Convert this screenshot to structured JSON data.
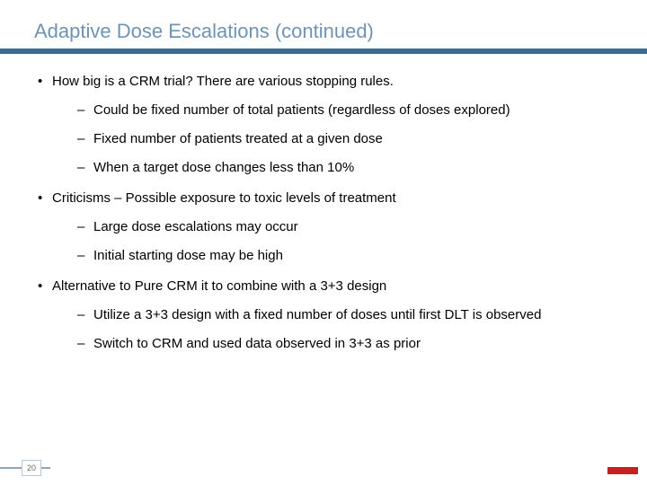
{
  "title": {
    "text": "Adaptive Dose Escalations (continued)",
    "color": "#6f93b3",
    "fontsize": 22
  },
  "header_band_color": "#3d6a8f",
  "body": {
    "fontsize": 15,
    "color": "#000000",
    "bullets": [
      {
        "text": "How big is a CRM trial?  There are various stopping rules.",
        "sub": [
          "Could be fixed number of total patients (regardless of doses explored)",
          "Fixed number of patients treated at a given dose",
          "When a target dose changes less than 10%"
        ]
      },
      {
        "text": "Criticisms – Possible exposure to toxic levels of treatment",
        "sub": [
          "Large dose escalations may occur",
          "Initial starting dose may be high"
        ]
      },
      {
        "text": "Alternative to Pure CRM it to combine with a 3+3 design",
        "sub": [
          "Utilize a 3+3 design with a fixed number of doses until first DLT is observed",
          "Switch to CRM and used data observed in 3+3 as prior"
        ]
      }
    ]
  },
  "footer": {
    "page_number": "20",
    "line_color": "#8aa7c2",
    "corner_mark_color": "#c62020"
  },
  "background_color": "#ffffff"
}
